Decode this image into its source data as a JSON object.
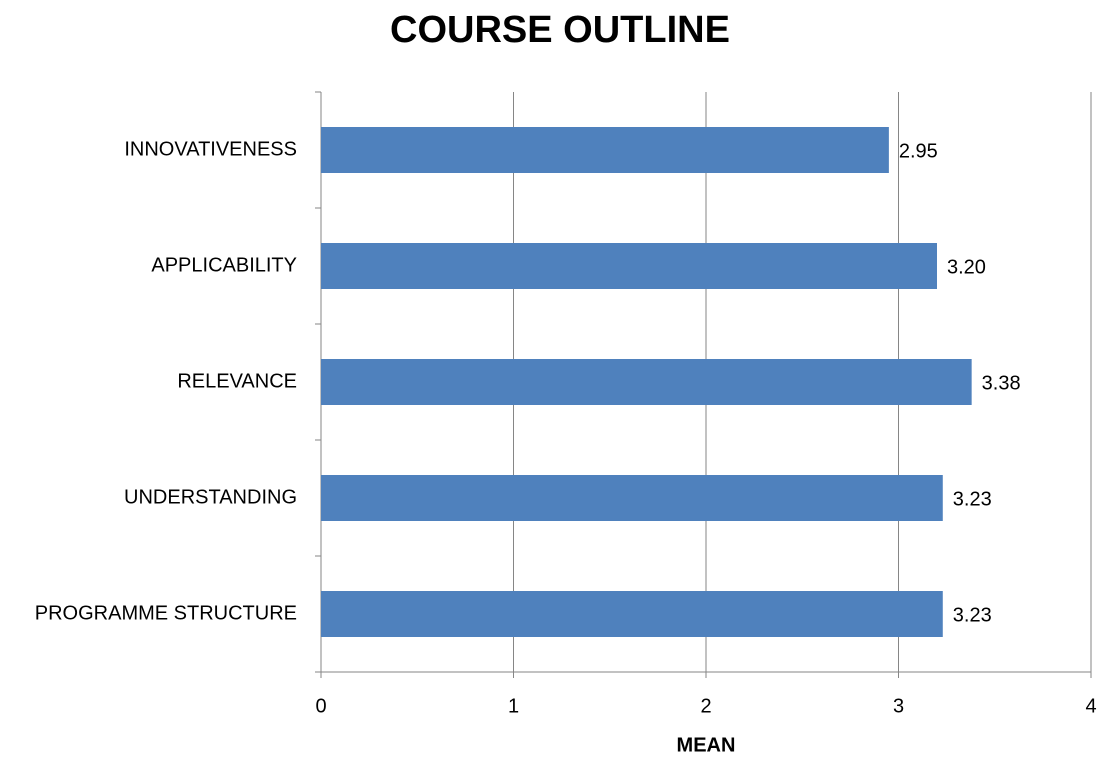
{
  "chart_data": {
    "type": "bar",
    "orientation": "horizontal",
    "title": "COURSE OUTLINE",
    "categories": [
      "INNOVATIVENESS",
      "APPLICABILITY",
      "RELEVANCE",
      "UNDERSTANDING",
      "PROGRAMME STRUCTURE"
    ],
    "values": [
      2.95,
      3.2,
      3.38,
      3.23,
      3.23
    ],
    "value_labels": [
      "2.95",
      "3.20",
      "3.38",
      "3.23",
      "3.23"
    ],
    "color": "#4f81bd",
    "xlabel": "MEAN",
    "xlim": [
      0,
      4
    ],
    "xticks": [
      0,
      1,
      2,
      3,
      4
    ],
    "grid": true
  }
}
